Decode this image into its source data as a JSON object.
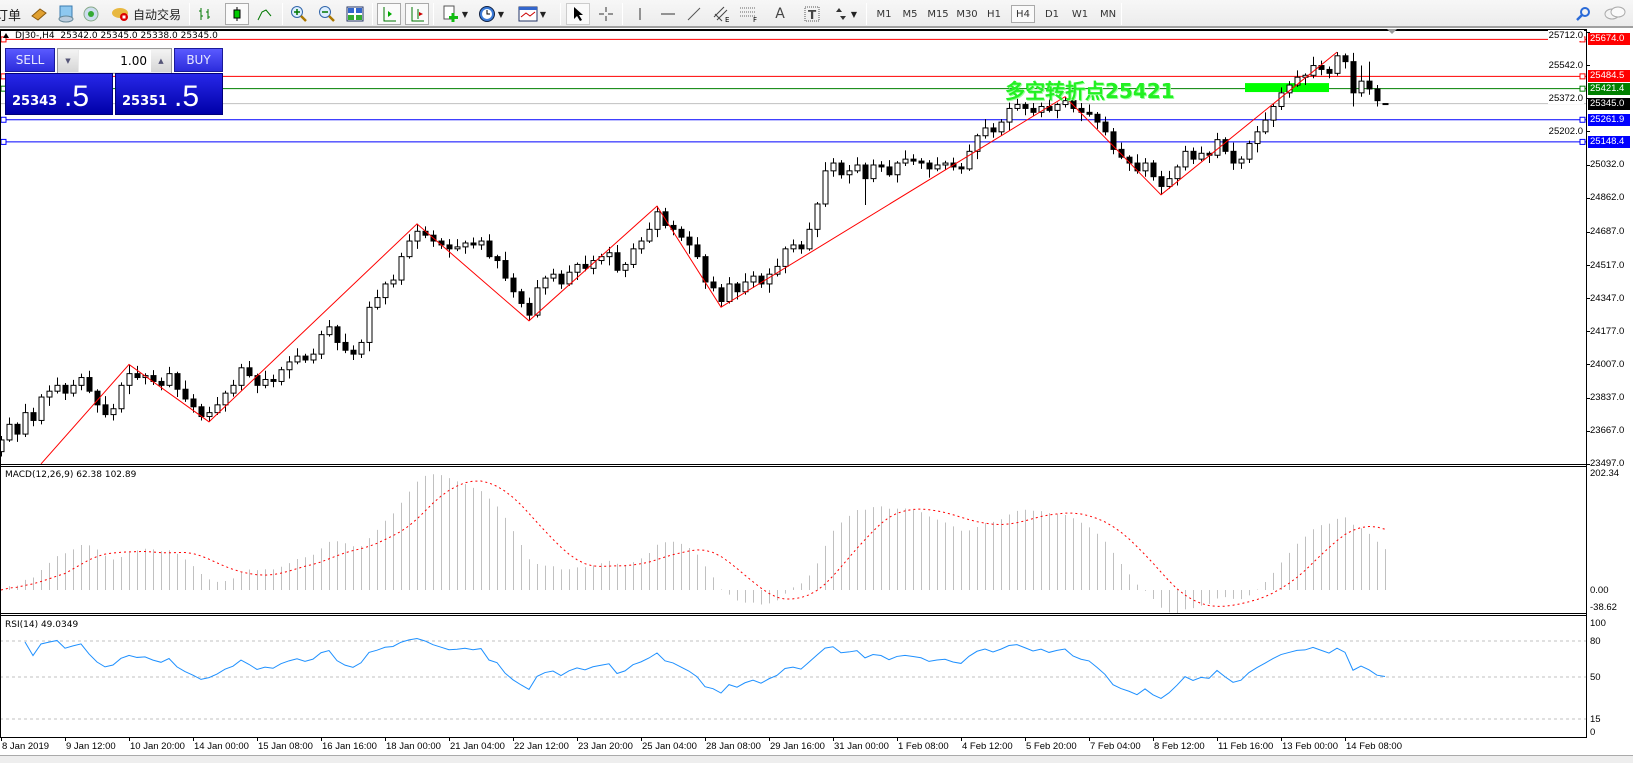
{
  "toolbar": {
    "new_order_label": "订单",
    "autotrading_label": "自动交易",
    "timeframes": [
      "M1",
      "M5",
      "M15",
      "M30",
      "H1",
      "H4",
      "D1",
      "W1",
      "MN"
    ],
    "active_timeframe": "H4",
    "icons": [
      "navigator-book-icon",
      "history-icon",
      "signals-icon",
      "autotrading-icon",
      "bar-chart-icon",
      "candlestick-icon",
      "line-chart-icon",
      "zoom-in-icon",
      "zoom-out-icon",
      "tile-windows-icon",
      "auto-scroll-icon",
      "chart-shift-icon",
      "new-chart-icon",
      "periods-clock-icon",
      "templates-icon",
      "cursor-icon",
      "crosshair-icon",
      "vertical-line-icon",
      "horizontal-line-icon",
      "trendline-icon",
      "equidistant-channel-icon",
      "fibonacci-icon",
      "text-icon",
      "text-label-icon",
      "arrows-icon",
      "search-icon",
      "chat-icon"
    ]
  },
  "chart": {
    "header": "DJ30-,H4  25342.0 25345.0 25338.0 25345.0",
    "pivot_text": "多空转折点25421",
    "pivot_text_color": "#22f022"
  },
  "trade_panel": {
    "sell_label": "SELL",
    "buy_label": "BUY",
    "lot": "1.00",
    "sell_price_main": "25343",
    "sell_price_frac": ".5",
    "buy_price_main": "25351",
    "buy_price_frac": ".5"
  },
  "chart_data": {
    "type": "candlestick",
    "symbol": "DJ30-",
    "timeframe": "H4",
    "price_ticks": [
      "25712.0",
      "25542.0",
      "25372.0",
      "25202.0",
      "25032.0",
      "24862.0",
      "24687.0",
      "24517.0",
      "24347.0",
      "24177.0",
      "24007.0",
      "23837.0",
      "23667.0",
      "23497.0"
    ],
    "ylim": [
      23497,
      25712
    ],
    "date_labels": [
      "8 Jan 2019",
      "9 Jan 12:00",
      "10 Jan 20:00",
      "14 Jan 00:00",
      "15 Jan 08:00",
      "16 Jan 16:00",
      "18 Jan 00:00",
      "21 Jan 04:00",
      "22 Jan 12:00",
      "23 Jan 20:00",
      "25 Jan 04:00",
      "28 Jan 08:00",
      "29 Jan 16:00",
      "31 Jan 00:00",
      "1 Feb 08:00",
      "4 Feb 12:00",
      "5 Feb 20:00",
      "7 Feb 04:00",
      "8 Feb 12:00",
      "11 Feb 16:00",
      "13 Feb 00:00",
      "14 Feb 08:00"
    ],
    "levels": [
      {
        "price": "25674.0",
        "value": 25674,
        "color": "#ff0000"
      },
      {
        "price": "25484.5",
        "value": 25484.5,
        "color": "#ff0000"
      },
      {
        "price": "25421.4",
        "value": 25421.4,
        "color": "#008000"
      },
      {
        "price": "25345.0",
        "value": 25345,
        "color": "#000000",
        "line": "#c0c0c0"
      },
      {
        "price": "25261.9",
        "value": 25261.9,
        "color": "#0000ff"
      },
      {
        "price": "25148.4",
        "value": 25148.4,
        "color": "#0000ff"
      }
    ],
    "zone": {
      "bar_from": 155.5,
      "bar_to": 166,
      "price_top": 25450,
      "price_bottom": 25404,
      "color": "#00ff00"
    },
    "zigzag": [
      [
        5,
        23497
      ],
      [
        16,
        24007
      ],
      [
        26,
        23713
      ],
      [
        52,
        24728
      ],
      [
        66,
        24231
      ],
      [
        82,
        24819
      ],
      [
        90,
        24301
      ],
      [
        133,
        25380
      ],
      [
        145,
        24877
      ],
      [
        167,
        25609
      ]
    ],
    "zigzag_color": "#ff0000",
    "candles": [
      [
        23560,
        23640,
        23535,
        23620
      ],
      [
        23620,
        23735,
        23610,
        23700
      ],
      [
        23700,
        23710,
        23610,
        23650
      ],
      [
        23650,
        23805,
        23635,
        23760
      ],
      [
        23760,
        23785,
        23690,
        23720
      ],
      [
        23720,
        23855,
        23700,
        23840
      ],
      [
        23840,
        23900,
        23795,
        23870
      ],
      [
        23870,
        23940,
        23858,
        23900
      ],
      [
        23900,
        23912,
        23825,
        23860
      ],
      [
        23860,
        23928,
        23842,
        23900
      ],
      [
        23900,
        23960,
        23875,
        23940
      ],
      [
        23940,
        23975,
        23860,
        23870
      ],
      [
        23870,
        23880,
        23760,
        23800
      ],
      [
        23800,
        23845,
        23735,
        23750
      ],
      [
        23750,
        23805,
        23720,
        23780
      ],
      [
        23780,
        23915,
        23760,
        23900
      ],
      [
        23900,
        24007,
        23855,
        23960
      ],
      [
        23960,
        24000,
        23928,
        23940
      ],
      [
        23940,
        23962,
        23905,
        23950
      ],
      [
        23950,
        23978,
        23902,
        23920
      ],
      [
        23920,
        23940,
        23875,
        23900
      ],
      [
        23900,
        23995,
        23890,
        23960
      ],
      [
        23960,
        23970,
        23840,
        23880
      ],
      [
        23880,
        23925,
        23815,
        23830
      ],
      [
        23830,
        23855,
        23760,
        23790
      ],
      [
        23790,
        23805,
        23720,
        23740
      ],
      [
        23740,
        23790,
        23713,
        23760
      ],
      [
        23760,
        23840,
        23748,
        23800
      ],
      [
        23800,
        23872,
        23765,
        23860
      ],
      [
        23860,
        23928,
        23842,
        23900
      ],
      [
        23900,
        24010,
        23875,
        23990
      ],
      [
        23990,
        24025,
        23940,
        23950
      ],
      [
        23950,
        23960,
        23860,
        23900
      ],
      [
        23900,
        23975,
        23885,
        23930
      ],
      [
        23930,
        23955,
        23890,
        23920
      ],
      [
        23920,
        23995,
        23900,
        23980
      ],
      [
        23980,
        24050,
        23935,
        24020
      ],
      [
        24020,
        24090,
        24008,
        24050
      ],
      [
        24050,
        24062,
        24015,
        24030
      ],
      [
        24030,
        24088,
        24012,
        24060
      ],
      [
        24060,
        24180,
        24035,
        24160
      ],
      [
        24160,
        24235,
        24150,
        24200
      ],
      [
        24200,
        24210,
        24080,
        24120
      ],
      [
        24120,
        24165,
        24065,
        24080
      ],
      [
        24080,
        24105,
        24030,
        24060
      ],
      [
        24060,
        24135,
        24040,
        24120
      ],
      [
        24120,
        24330,
        24075,
        24300
      ],
      [
        24300,
        24390,
        24288,
        24350
      ],
      [
        24350,
        24432,
        24315,
        24420
      ],
      [
        24420,
        24468,
        24402,
        24440
      ],
      [
        24440,
        24580,
        24415,
        24560
      ],
      [
        24560,
        24675,
        24550,
        24640
      ],
      [
        24640,
        24728,
        24600,
        24690
      ],
      [
        24690,
        24715,
        24655,
        24670
      ],
      [
        24670,
        24695,
        24610,
        24640
      ],
      [
        24640,
        24655,
        24600,
        24620
      ],
      [
        24620,
        24650,
        24555,
        24600
      ],
      [
        24600,
        24650,
        24588,
        24610
      ],
      [
        24610,
        24642,
        24575,
        24630
      ],
      [
        24630,
        24658,
        24602,
        24620
      ],
      [
        24620,
        24660,
        24595,
        24640
      ],
      [
        24640,
        24675,
        24550,
        24560
      ],
      [
        24560,
        24570,
        24500,
        24540
      ],
      [
        24540,
        24585,
        24435,
        24450
      ],
      [
        24450,
        24475,
        24350,
        24380
      ],
      [
        24380,
        24395,
        24300,
        24320
      ],
      [
        24320,
        24350,
        24231,
        24260
      ],
      [
        24260,
        24440,
        24248,
        24400
      ],
      [
        24400,
        24462,
        24365,
        24450
      ],
      [
        24450,
        24498,
        24432,
        24470
      ],
      [
        24470,
        24490,
        24395,
        24420
      ],
      [
        24420,
        24515,
        24410,
        24480
      ],
      [
        24480,
        24530,
        24440,
        24520
      ],
      [
        24520,
        24565,
        24485,
        24500
      ],
      [
        24500,
        24565,
        24470,
        24540
      ],
      [
        24540,
        24575,
        24520,
        24560
      ],
      [
        24560,
        24610,
        24515,
        24580
      ],
      [
        24580,
        24620,
        24478,
        24490
      ],
      [
        24490,
        24532,
        24455,
        24520
      ],
      [
        24520,
        24628,
        24502,
        24600
      ],
      [
        24600,
        24660,
        24575,
        24640
      ],
      [
        24640,
        24735,
        24630,
        24700
      ],
      [
        24700,
        24819,
        24660,
        24790
      ],
      [
        24790,
        24810,
        24705,
        24720
      ],
      [
        24720,
        24745,
        24670,
        24700
      ],
      [
        24700,
        24715,
        24640,
        24660
      ],
      [
        24660,
        24690,
        24575,
        24620
      ],
      [
        24620,
        24660,
        24548,
        24560
      ],
      [
        24560,
        24572,
        24395,
        24430
      ],
      [
        24430,
        24458,
        24382,
        24400
      ],
      [
        24400,
        24420,
        24301,
        24330
      ],
      [
        24330,
        24455,
        24320,
        24420
      ],
      [
        24420,
        24430,
        24340,
        24380
      ],
      [
        24380,
        24475,
        24365,
        24430
      ],
      [
        24430,
        24485,
        24400,
        24460
      ],
      [
        24460,
        24475,
        24400,
        24420
      ],
      [
        24420,
        24500,
        24375,
        24470
      ],
      [
        24470,
        24550,
        24458,
        24510
      ],
      [
        24510,
        24612,
        24475,
        24600
      ],
      [
        24600,
        24648,
        24582,
        24620
      ],
      [
        24620,
        24640,
        24575,
        24600
      ],
      [
        24600,
        24735,
        24590,
        24700
      ],
      [
        24700,
        24840,
        24660,
        24830
      ],
      [
        24830,
        25045,
        24815,
        25000
      ],
      [
        25000,
        25065,
        24970,
        25040
      ],
      [
        25040,
        25055,
        24960,
        24980
      ],
      [
        24980,
        25030,
        24935,
        25000
      ],
      [
        25000,
        25070,
        24988,
        25030
      ],
      [
        25030,
        25042,
        24825,
        24960
      ],
      [
        24960,
        25058,
        24942,
        25030
      ],
      [
        25030,
        25050,
        24995,
        25020
      ],
      [
        25020,
        25055,
        24970,
        24980
      ],
      [
        24980,
        25050,
        24940,
        25040
      ],
      [
        25040,
        25105,
        25025,
        25060
      ],
      [
        25060,
        25085,
        25030,
        25050
      ],
      [
        25050,
        25065,
        25010,
        25040
      ],
      [
        25040,
        25055,
        24965,
        25010
      ],
      [
        25010,
        25070,
        24998,
        25030
      ],
      [
        25030,
        25052,
        25005,
        25040
      ],
      [
        25040,
        25068,
        25002,
        25020
      ],
      [
        25020,
        25040,
        24985,
        25010
      ],
      [
        25010,
        25135,
        25000,
        25100
      ],
      [
        25100,
        25190,
        25060,
        25180
      ],
      [
        25180,
        25265,
        25165,
        25220
      ],
      [
        25220,
        25245,
        25170,
        25200
      ],
      [
        25200,
        25265,
        25180,
        25250
      ],
      [
        25250,
        25350,
        25205,
        25320
      ],
      [
        25320,
        25380,
        25308,
        25340
      ],
      [
        25340,
        25352,
        25285,
        25320
      ],
      [
        25320,
        25348,
        25282,
        25300
      ],
      [
        25300,
        25350,
        25275,
        25330
      ],
      [
        25330,
        25365,
        25300,
        25310
      ],
      [
        25310,
        25350,
        25270,
        25340
      ],
      [
        25340,
        25380,
        25325,
        25360
      ],
      [
        25360,
        25372,
        25300,
        25320
      ],
      [
        25320,
        25348,
        25255,
        25300
      ],
      [
        25300,
        25340,
        25278,
        25290
      ],
      [
        25290,
        25302,
        25215,
        25250
      ],
      [
        25250,
        25278,
        25182,
        25200
      ],
      [
        25200,
        25220,
        25085,
        25110
      ],
      [
        25110,
        25145,
        25060,
        25070
      ],
      [
        25070,
        25080,
        25000,
        25040
      ],
      [
        25040,
        25085,
        24985,
        25000
      ],
      [
        25000,
        25065,
        24970,
        25040
      ],
      [
        25040,
        25055,
        24950,
        24970
      ],
      [
        24970,
        25000,
        24877,
        24920
      ],
      [
        24920,
        25000,
        24908,
        24960
      ],
      [
        24960,
        25032,
        24925,
        25020
      ],
      [
        25020,
        25128,
        25002,
        25100
      ],
      [
        25100,
        25120,
        25035,
        25060
      ],
      [
        25060,
        25125,
        25050,
        25090
      ],
      [
        25090,
        25100,
        25040,
        25080
      ],
      [
        25080,
        25195,
        25065,
        25160
      ],
      [
        25160,
        25172,
        25085,
        25100
      ],
      [
        25100,
        25145,
        25005,
        25040
      ],
      [
        25040,
        25075,
        25010,
        25060
      ],
      [
        25060,
        25155,
        25040,
        25140
      ],
      [
        25140,
        25230,
        25095,
        25200
      ],
      [
        25200,
        25300,
        25188,
        25260
      ],
      [
        25260,
        25342,
        25225,
        25330
      ],
      [
        25330,
        25428,
        25312,
        25400
      ],
      [
        25400,
        25460,
        25375,
        25440
      ],
      [
        25440,
        25515,
        25430,
        25480
      ],
      [
        25480,
        25500,
        25440,
        25490
      ],
      [
        25490,
        25585,
        25475,
        25540
      ],
      [
        25540,
        25565,
        25490,
        25520
      ],
      [
        25520,
        25535,
        25475,
        25500
      ],
      [
        25500,
        25609,
        25488,
        25590
      ],
      [
        25590,
        25602,
        25525,
        25560
      ],
      [
        25560,
        25605,
        25330,
        25400
      ],
      [
        25400,
        25540,
        25380,
        25460
      ],
      [
        25460,
        25560,
        25390,
        25420
      ],
      [
        25420,
        25440,
        25330,
        25360
      ],
      [
        25342,
        25345,
        25338,
        25345
      ]
    ]
  },
  "macd": {
    "label": "MACD(12,26,9) 62.38 102.89",
    "ticks": [
      "202.34",
      "0.00",
      "-38.62"
    ],
    "range": [
      -38.62,
      202.34
    ],
    "hist_color": "#c0c0c0",
    "signal_color": "#ff0000"
  },
  "rsi": {
    "label": "RSI(14) 49.0349",
    "ticks": [
      "100",
      "80",
      "50",
      "15",
      "0"
    ],
    "levels": [
      80,
      50,
      15
    ],
    "color": "#1e90ff"
  }
}
